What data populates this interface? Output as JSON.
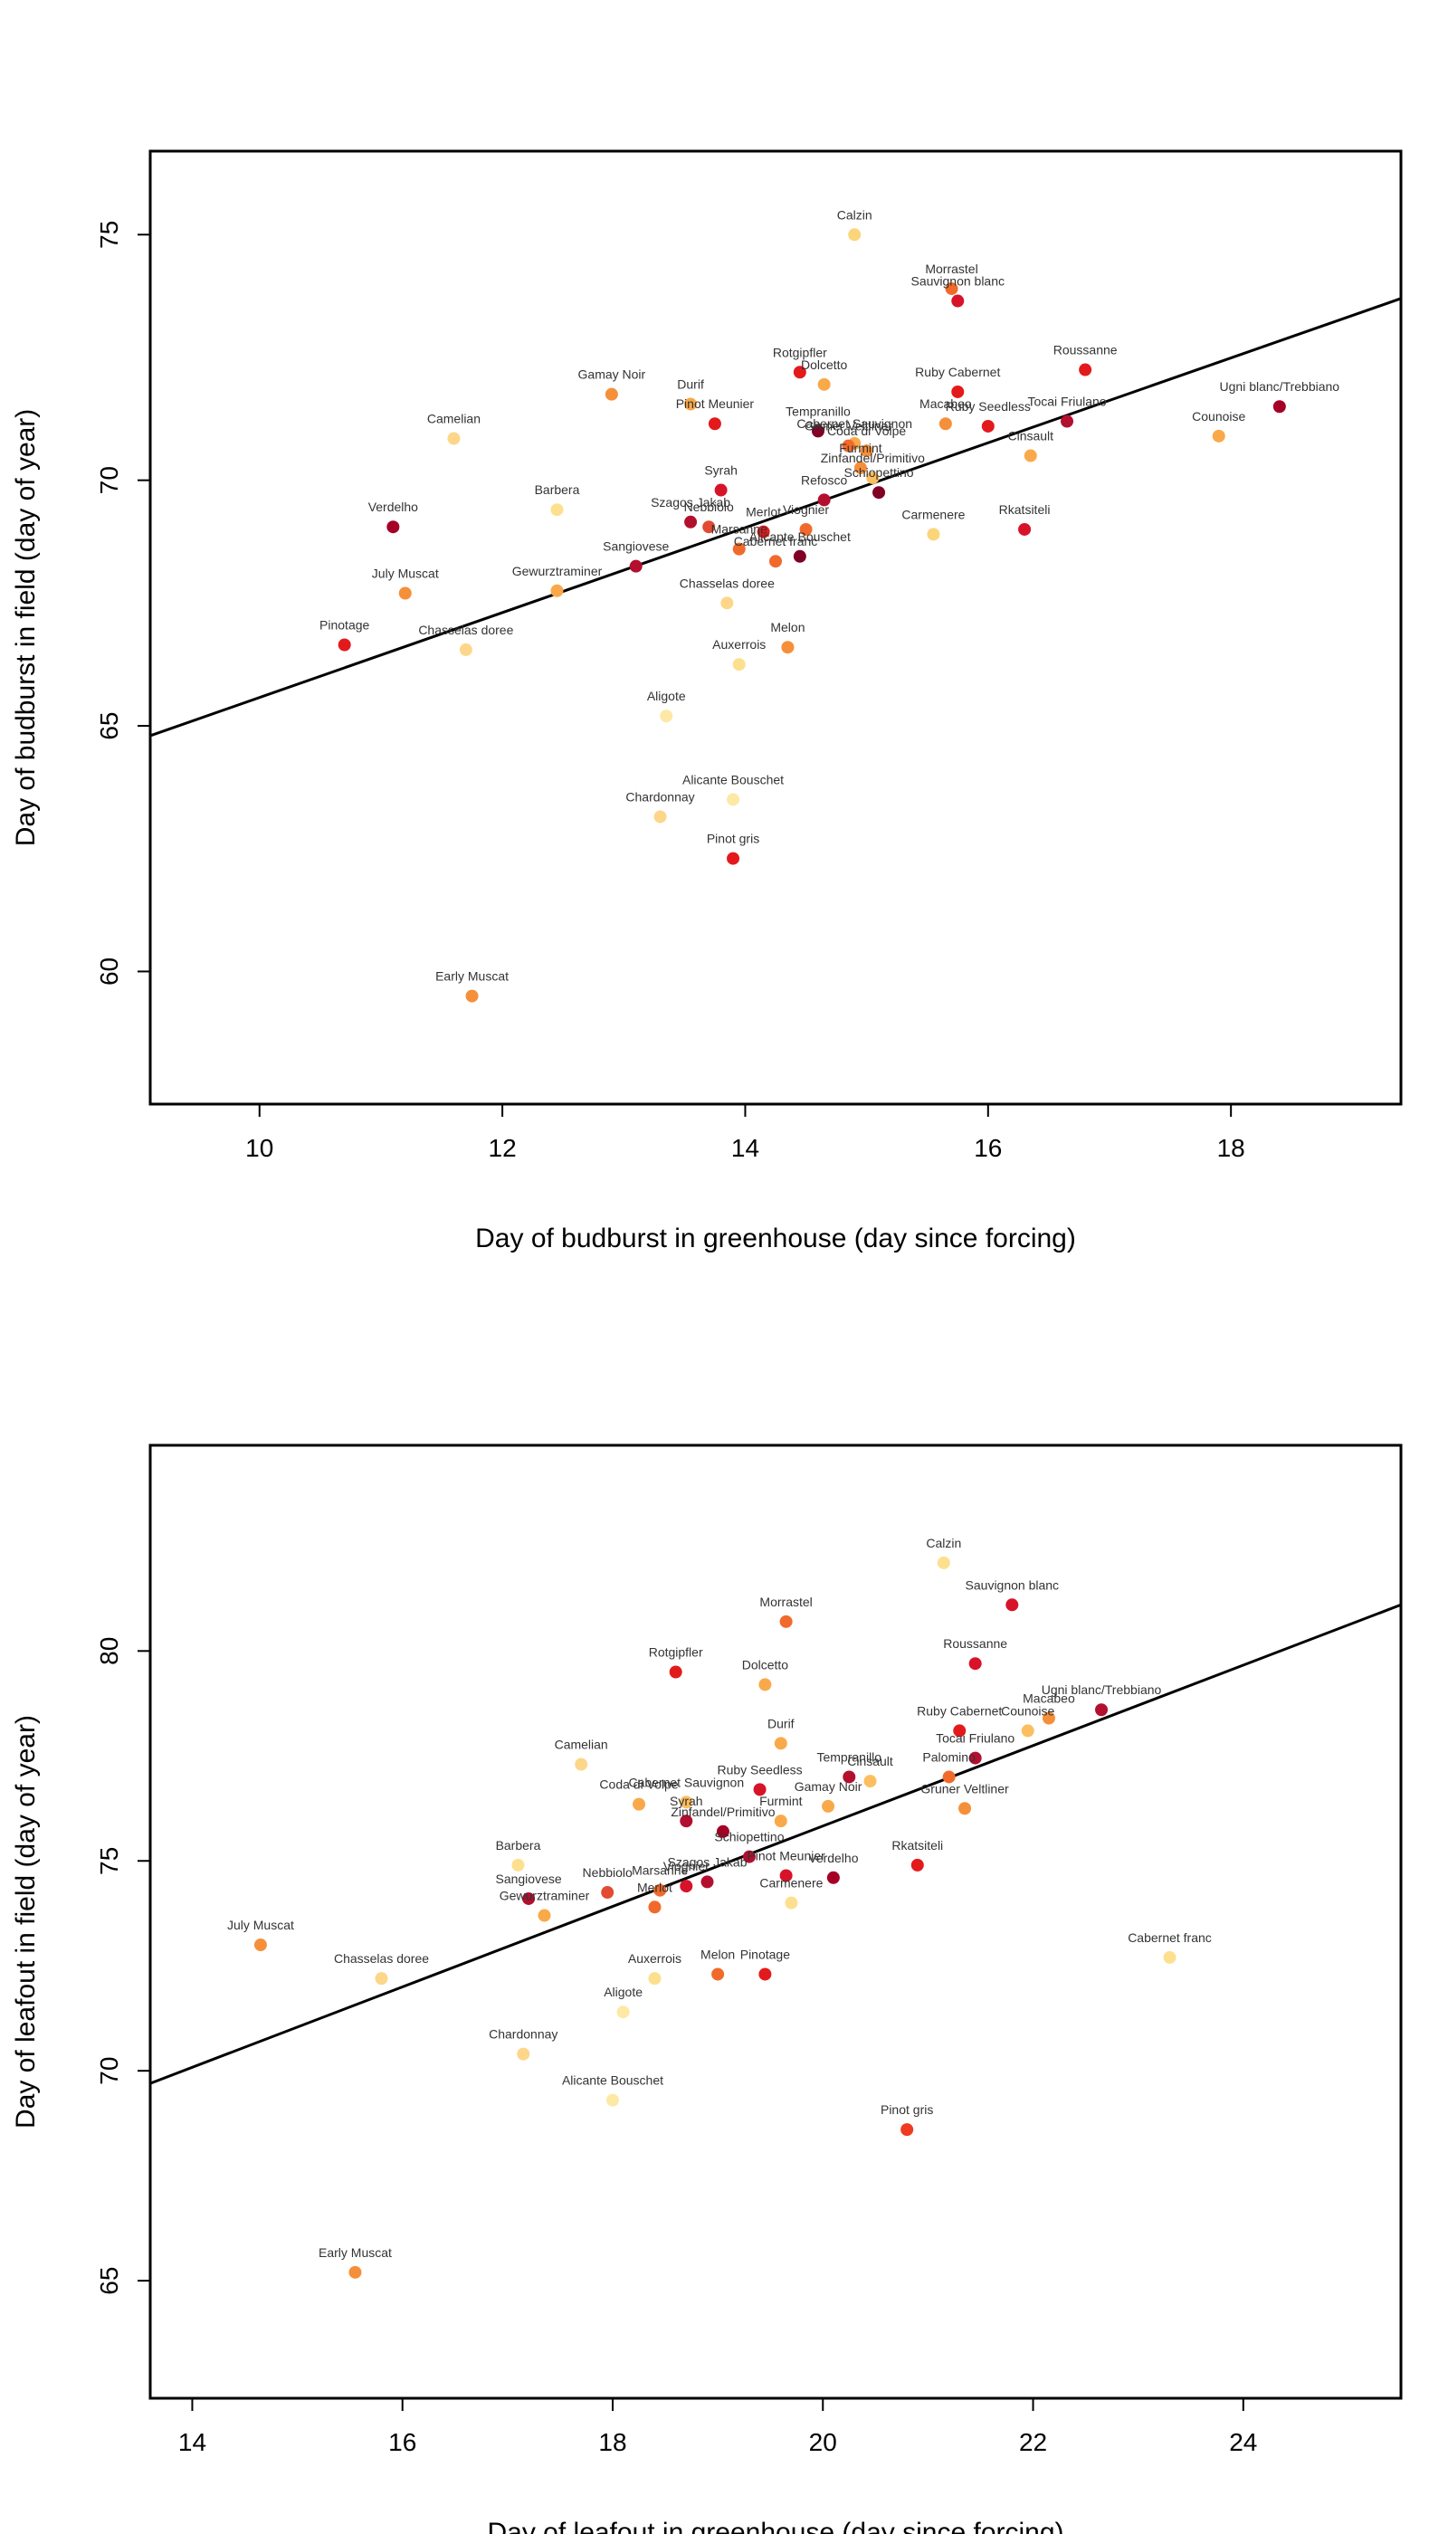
{
  "chart_data": [
    {
      "type": "scatter",
      "xlabel": "Day of budburst in greenhouse (day since forcing)",
      "ylabel": "Day of budburst in field (day of year)",
      "xlim": [
        9.1,
        19.4
      ],
      "ylim": [
        57.3,
        76.7
      ],
      "xticks": [
        10,
        12,
        14,
        16,
        18
      ],
      "yticks": [
        60,
        65,
        70,
        75
      ],
      "fit_line": [
        [
          9.1,
          64.8
        ],
        [
          19.4,
          73.7
        ]
      ],
      "points": [
        {
          "label": "Calzin",
          "x": 14.9,
          "y": 75.0,
          "color": "#fcd57a"
        },
        {
          "label": "Morrastel",
          "x": 15.7,
          "y": 73.9,
          "color": "#f16a2b"
        },
        {
          "label": "Sauvignon blanc",
          "x": 15.75,
          "y": 73.65,
          "color": "#d7132a"
        },
        {
          "label": "Roussanne",
          "x": 16.8,
          "y": 72.25,
          "color": "#e31a1c"
        },
        {
          "label": "Ugni blanc/Trebbiano",
          "x": 18.4,
          "y": 71.5,
          "color": "#a50026"
        },
        {
          "label": "Rotgipfler",
          "x": 14.45,
          "y": 72.2,
          "color": "#e31a1c"
        },
        {
          "label": "Dolcetto",
          "x": 14.65,
          "y": 71.95,
          "color": "#f9a94a"
        },
        {
          "label": "Ruby Cabernet",
          "x": 15.75,
          "y": 71.8,
          "color": "#e31a1c"
        },
        {
          "label": "Gamay Noir",
          "x": 12.9,
          "y": 71.75,
          "color": "#f68f3a"
        },
        {
          "label": "Durif",
          "x": 13.55,
          "y": 71.55,
          "color": "#f9a94a"
        },
        {
          "label": "Pinot Meunier",
          "x": 13.75,
          "y": 71.15,
          "color": "#e31a1c"
        },
        {
          "label": "Macabeo",
          "x": 15.65,
          "y": 71.15,
          "color": "#f68f3a"
        },
        {
          "label": "Ruby Seedless",
          "x": 16.0,
          "y": 71.1,
          "color": "#e31a1c"
        },
        {
          "label": "Tocai Friulano",
          "x": 16.65,
          "y": 71.2,
          "color": "#b30f2e"
        },
        {
          "label": "Counoise",
          "x": 17.9,
          "y": 70.9,
          "color": "#f9a94a"
        },
        {
          "label": "Camelian",
          "x": 11.6,
          "y": 70.85,
          "color": "#fdd68a"
        },
        {
          "label": "Tempranillo",
          "x": 14.6,
          "y": 71.0,
          "color": "#800026"
        },
        {
          "label": "Cabernet Sauvignon",
          "x": 14.9,
          "y": 70.75,
          "color": "#f9a94a"
        },
        {
          "label": "Coda di Volpe",
          "x": 15.0,
          "y": 70.6,
          "color": "#f68f3a"
        },
        {
          "label": "Gruner Veltliner",
          "x": 14.85,
          "y": 70.7,
          "color": "#f16a2b"
        },
        {
          "label": "Cinsault",
          "x": 16.35,
          "y": 70.5,
          "color": "#f9a94a"
        },
        {
          "label": "Furmint",
          "x": 14.95,
          "y": 70.25,
          "color": "#f68f3a"
        },
        {
          "label": "Zinfandel/Primitivo",
          "x": 15.05,
          "y": 70.05,
          "color": "#fcbf5f"
        },
        {
          "label": "Schiopettino",
          "x": 15.1,
          "y": 69.75,
          "color": "#800026"
        },
        {
          "label": "Syrah",
          "x": 13.8,
          "y": 69.8,
          "color": "#d7132a"
        },
        {
          "label": "Barbera",
          "x": 12.45,
          "y": 69.4,
          "color": "#fde08f"
        },
        {
          "label": "Szagos Jakab",
          "x": 13.55,
          "y": 69.15,
          "color": "#b30f2e"
        },
        {
          "label": "Nebbiolo",
          "x": 13.7,
          "y": 69.05,
          "color": "#e34a33"
        },
        {
          "label": "Refosco",
          "x": 14.65,
          "y": 69.6,
          "color": "#b30f2e"
        },
        {
          "label": "Verdelho",
          "x": 11.1,
          "y": 69.05,
          "color": "#a50026"
        },
        {
          "label": "Carmenere",
          "x": 15.55,
          "y": 68.9,
          "color": "#fcd57a"
        },
        {
          "label": "Rkatsiteli",
          "x": 16.3,
          "y": 69.0,
          "color": "#d7132a"
        },
        {
          "label": "Merlot",
          "x": 14.15,
          "y": 68.95,
          "color": "#e31a1c"
        },
        {
          "label": "Viognier",
          "x": 14.5,
          "y": 69.0,
          "color": "#f16a2b"
        },
        {
          "label": "Marsanne",
          "x": 13.95,
          "y": 68.6,
          "color": "#f16a2b"
        },
        {
          "label": "Sangiovese",
          "x": 13.1,
          "y": 68.25,
          "color": "#b30f2e"
        },
        {
          "label": "Alicante Bouschet",
          "x": 14.45,
          "y": 68.45,
          "color": "#800026"
        },
        {
          "label": "Cabernet franc",
          "x": 14.25,
          "y": 68.35,
          "color": "#f16a2b"
        },
        {
          "label": "July Muscat",
          "x": 11.2,
          "y": 67.7,
          "color": "#f68f3a"
        },
        {
          "label": "Gewurztraminer",
          "x": 12.45,
          "y": 67.75,
          "color": "#f9a94a"
        },
        {
          "label": "Chasselas doree",
          "x": 13.85,
          "y": 67.5,
          "color": "#fdd68a"
        },
        {
          "label": "Pinotage",
          "x": 10.7,
          "y": 66.65,
          "color": "#e31a1c"
        },
        {
          "label": "Chasselas doree",
          "x": 11.7,
          "y": 66.55,
          "color": "#fdd68a"
        },
        {
          "label": "Melon",
          "x": 14.35,
          "y": 66.6,
          "color": "#f68f3a"
        },
        {
          "label": "Auxerrois",
          "x": 13.95,
          "y": 66.25,
          "color": "#fde08f"
        },
        {
          "label": "Aligote",
          "x": 13.35,
          "y": 65.2,
          "color": "#fde9a5"
        },
        {
          "label": "Alicante Bouschet",
          "x": 13.9,
          "y": 63.5,
          "color": "#fde9a5"
        },
        {
          "label": "Chardonnay",
          "x": 13.3,
          "y": 63.15,
          "color": "#fdd68a"
        },
        {
          "label": "Pinot gris",
          "x": 13.9,
          "y": 62.3,
          "color": "#e31a1c"
        },
        {
          "label": "Early Muscat",
          "x": 11.75,
          "y": 59.5,
          "color": "#f68f3a"
        }
      ]
    },
    {
      "type": "scatter",
      "xlabel": "Day of leafout in greenhouse (day since forcing)",
      "ylabel": "Day of leafout in field (day of year)",
      "xlim": [
        13.6,
        25.5
      ],
      "ylim": [
        62.2,
        84.9
      ],
      "xticks": [
        14,
        16,
        18,
        20,
        22,
        24
      ],
      "yticks": [
        65,
        70,
        75,
        80
      ],
      "fit_line": [
        [
          13.6,
          69.7
        ],
        [
          25.5,
          81.1
        ]
      ],
      "points": [
        {
          "label": "Calzin",
          "x": 21.15,
          "y": 82.1,
          "color": "#fde08f"
        },
        {
          "label": "Sauvignon blanc",
          "x": 21.8,
          "y": 81.1,
          "color": "#d7132a"
        },
        {
          "label": "Morrastel",
          "x": 19.65,
          "y": 80.7,
          "color": "#f16a2b"
        },
        {
          "label": "Roussanne",
          "x": 21.45,
          "y": 79.7,
          "color": "#d7132a"
        },
        {
          "label": "Rotgipfler",
          "x": 18.6,
          "y": 79.5,
          "color": "#e31a1c"
        },
        {
          "label": "Dolcetto",
          "x": 19.45,
          "y": 79.2,
          "color": "#f9a94a"
        },
        {
          "label": "Ugni blanc/Trebbiano",
          "x": 22.65,
          "y": 78.6,
          "color": "#b30f2e"
        },
        {
          "label": "Macabeo",
          "x": 22.15,
          "y": 78.4,
          "color": "#f68f3a"
        },
        {
          "label": "Ruby Cabernet",
          "x": 21.3,
          "y": 78.1,
          "color": "#e31a1c"
        },
        {
          "label": "Counoise",
          "x": 21.95,
          "y": 78.1,
          "color": "#fcbf5f"
        },
        {
          "label": "Durif",
          "x": 19.6,
          "y": 77.8,
          "color": "#f9a94a"
        },
        {
          "label": "Tocai Friulano",
          "x": 21.45,
          "y": 77.45,
          "color": "#b30f2e"
        },
        {
          "label": "Camelian",
          "x": 17.7,
          "y": 77.3,
          "color": "#fdd68a"
        },
        {
          "label": "Tempranillo",
          "x": 20.25,
          "y": 77.0,
          "color": "#b30f2e"
        },
        {
          "label": "Cinsault",
          "x": 20.45,
          "y": 76.9,
          "color": "#fcbf5f"
        },
        {
          "label": "Palomino",
          "x": 21.2,
          "y": 77.0,
          "color": "#f16a2b"
        },
        {
          "label": "Ruby Seedless",
          "x": 19.4,
          "y": 76.7,
          "color": "#d7132a"
        },
        {
          "label": "Cabernet Sauvignon",
          "x": 18.7,
          "y": 76.4,
          "color": "#fcbf5f"
        },
        {
          "label": "Coda di Volpe",
          "x": 18.25,
          "y": 76.35,
          "color": "#f9a94a"
        },
        {
          "label": "Gamay Noir",
          "x": 20.05,
          "y": 76.3,
          "color": "#f9a94a"
        },
        {
          "label": "Gruner Veltliner",
          "x": 21.35,
          "y": 76.25,
          "color": "#f68f3a"
        },
        {
          "label": "Furmint",
          "x": 19.6,
          "y": 75.95,
          "color": "#f9a94a"
        },
        {
          "label": "Syrah",
          "x": 18.7,
          "y": 75.95,
          "color": "#b30f2e"
        },
        {
          "label": "Zinfandel/Primitivo",
          "x": 19.05,
          "y": 75.7,
          "color": "#a50026"
        },
        {
          "label": "Schiopettino",
          "x": 19.3,
          "y": 75.1,
          "color": "#b30f2e"
        },
        {
          "label": "Barbera",
          "x": 17.1,
          "y": 74.9,
          "color": "#fde08f"
        },
        {
          "label": "Rkatsiteli",
          "x": 20.9,
          "y": 74.9,
          "color": "#e31a1c"
        },
        {
          "label": "Szagos Jakab",
          "x": 18.9,
          "y": 74.5,
          "color": "#b30f2e"
        },
        {
          "label": "Pinot Meunier",
          "x": 19.65,
          "y": 74.65,
          "color": "#d7132a"
        },
        {
          "label": "Verdelho",
          "x": 20.1,
          "y": 74.6,
          "color": "#a50026"
        },
        {
          "label": "Marsanne",
          "x": 18.45,
          "y": 74.3,
          "color": "#f16a2b"
        },
        {
          "label": "Viognier",
          "x": 18.7,
          "y": 74.4,
          "color": "#d7132a"
        },
        {
          "label": "Nebbiolo",
          "x": 17.95,
          "y": 74.25,
          "color": "#e34a33"
        },
        {
          "label": "Sangiovese",
          "x": 17.2,
          "y": 74.1,
          "color": "#b30f2e"
        },
        {
          "label": "Carmenere",
          "x": 19.7,
          "y": 74.0,
          "color": "#fde08f"
        },
        {
          "label": "Merlot",
          "x": 18.4,
          "y": 73.9,
          "color": "#f16a2b"
        },
        {
          "label": "Gewurztraminer",
          "x": 17.35,
          "y": 73.7,
          "color": "#f9a94a"
        },
        {
          "label": "July Muscat",
          "x": 14.65,
          "y": 73.0,
          "color": "#f68f3a"
        },
        {
          "label": "Cabernet franc",
          "x": 23.3,
          "y": 72.7,
          "color": "#fde08f"
        },
        {
          "label": "Melon",
          "x": 19.0,
          "y": 72.3,
          "color": "#f16a2b"
        },
        {
          "label": "Pinotage",
          "x": 19.45,
          "y": 72.3,
          "color": "#e31a1c"
        },
        {
          "label": "Chasselas doree",
          "x": 15.8,
          "y": 72.2,
          "color": "#fdd68a"
        },
        {
          "label": "Auxerrois",
          "x": 18.4,
          "y": 72.2,
          "color": "#fde08f"
        },
        {
          "label": "Aligote",
          "x": 18.1,
          "y": 71.4,
          "color": "#fde9a5"
        },
        {
          "label": "Chardonnay",
          "x": 17.15,
          "y": 70.4,
          "color": "#fdd68a"
        },
        {
          "label": "Alicante Bouschet",
          "x": 18.0,
          "y": 69.3,
          "color": "#fde9a5"
        },
        {
          "label": "Pinot gris",
          "x": 20.8,
          "y": 68.6,
          "color": "#f03b20"
        },
        {
          "label": "Early Muscat",
          "x": 15.55,
          "y": 65.2,
          "color": "#f68f3a"
        }
      ]
    }
  ]
}
